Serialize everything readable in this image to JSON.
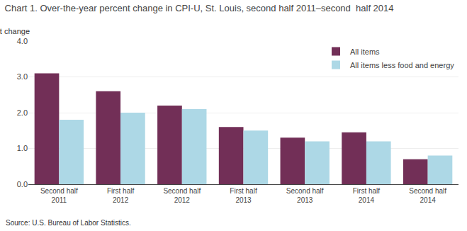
{
  "chart_data": {
    "type": "bar",
    "title": "Chart 1. Over-the-year percent change in CPI-U, St. Louis, second half 2011–second  half 2014",
    "ylabel": "Percent change",
    "annotations": [
      "Source: U.S. Bureau of Labor Statistics."
    ],
    "categories": [
      "Second half 2011",
      "First half 2012",
      "Second half 2012",
      "First half 2013",
      "Second half 2013",
      "First half 2014",
      "Second half 2014"
    ],
    "series": [
      {
        "name": "All items",
        "color": "#722F57",
        "values": [
          3.1,
          2.6,
          2.2,
          1.6,
          1.3,
          1.45,
          0.7
        ]
      },
      {
        "name": "All items less food and energy",
        "color": "#ADD8E6",
        "values": [
          1.8,
          2.0,
          2.1,
          1.5,
          1.2,
          1.2,
          0.8
        ]
      }
    ],
    "ylim": [
      0,
      4.0
    ],
    "yticks": [
      {
        "value": 0.0,
        "label": "0.0"
      },
      {
        "value": 1.0,
        "label": "1.0"
      },
      {
        "value": 2.0,
        "label": "2.0"
      },
      {
        "value": 3.0,
        "label": "3.0"
      },
      {
        "value": 4.0,
        "label": "4.0"
      }
    ],
    "grid": true,
    "legend": "upper right"
  }
}
